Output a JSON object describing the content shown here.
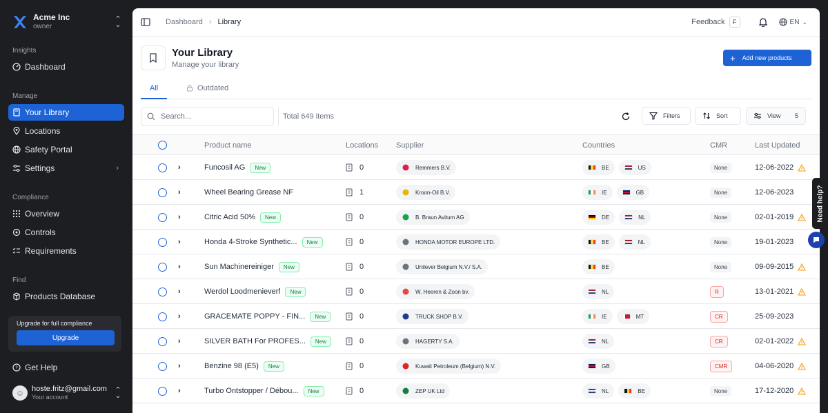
{
  "org": {
    "name": "Acme Inc",
    "role": "owner"
  },
  "sidebar": {
    "sections": [
      {
        "label": "Insights",
        "items": [
          {
            "label": "Dashboard",
            "icon": "gauge-icon"
          }
        ]
      },
      {
        "label": "Manage",
        "items": [
          {
            "label": "Your Library",
            "icon": "book-icon",
            "active": true
          },
          {
            "label": "Locations",
            "icon": "pin-icon"
          },
          {
            "label": "Safety Portal",
            "icon": "globe-icon"
          },
          {
            "label": "Settings",
            "icon": "settings-icon"
          }
        ]
      },
      {
        "label": "Compliance",
        "items": [
          {
            "label": "Overview",
            "icon": "grid-icon"
          },
          {
            "label": "Controls",
            "icon": "controls-icon"
          },
          {
            "label": "Requirements",
            "icon": "checklist-icon"
          }
        ]
      },
      {
        "label": "Find",
        "items": [
          {
            "label": "Products Database",
            "icon": "database-icon"
          }
        ]
      }
    ],
    "upgrade": {
      "title": "Upgrade for full compliance",
      "button": "Upgrade"
    },
    "help": "Get Help",
    "account": {
      "email": "hoste.fritz@gmail.com",
      "sub": "Your account"
    }
  },
  "topbar": {
    "breadcrumb": [
      "Dashboard",
      "Library"
    ],
    "feedback": "Feedback",
    "feedback_key": "F",
    "language": "EN"
  },
  "page": {
    "title": "Your Library",
    "subtitle": "Manage your library",
    "add_button": "Add new products",
    "tabs": [
      "All",
      "Outdated"
    ]
  },
  "toolbar": {
    "search_placeholder": "Search...",
    "total": "Total 649 items",
    "filters": "Filters",
    "sort": "Sort",
    "view": "View",
    "view_count": "5"
  },
  "table": {
    "columns": [
      "Product name",
      "Locations",
      "Supplier",
      "Countries",
      "CMR",
      "Last Updated"
    ],
    "rows": [
      {
        "name": "Funcosil AG",
        "new": true,
        "locations": "0",
        "supplier": "Remmers B.V.",
        "countries": [
          "BE",
          "US"
        ],
        "cmr": "None",
        "updated": "12-06-2022",
        "warn": true
      },
      {
        "name": "Wheel Bearing Grease NF",
        "new": false,
        "locations": "1",
        "supplier": "Kroon-Oil B.V.",
        "countries": [
          "IE",
          "GB"
        ],
        "cmr": "None",
        "updated": "12-06-2023",
        "warn": false
      },
      {
        "name": "Citric Acid 50%",
        "new": true,
        "locations": "0",
        "supplier": "B. Braun Avitum AG",
        "countries": [
          "DE",
          "NL"
        ],
        "cmr": "None",
        "updated": "02-01-2019",
        "warn": true
      },
      {
        "name": "Honda 4-Stroke Synthetic...",
        "new": true,
        "locations": "0",
        "supplier": "HONDA MOTOR EUROPE LTD.",
        "countries": [
          "BE",
          "NL"
        ],
        "cmr": "None",
        "updated": "19-01-2023",
        "warn": false
      },
      {
        "name": "Sun Machinereiniger",
        "new": true,
        "locations": "0",
        "supplier": "Unilever Belgium N.V./ S.A.",
        "countries": [
          "BE"
        ],
        "cmr": "None",
        "updated": "09-09-2015",
        "warn": true
      },
      {
        "name": "Werdol Loodmenieverf",
        "new": true,
        "locations": "0",
        "supplier": "W. Heeren & Zoon bv.",
        "countries": [
          "NL"
        ],
        "cmr": "R",
        "updated": "13-01-2021",
        "warn": true
      },
      {
        "name": "GRACEMATE POPPY - FIN...",
        "new": true,
        "locations": "0",
        "supplier": "TRUCK SHOP B.V.",
        "countries": [
          "IE",
          "MT"
        ],
        "cmr": "CR",
        "updated": "25-09-2023",
        "warn": false
      },
      {
        "name": "SILVER BATH For PROFES...",
        "new": true,
        "locations": "0",
        "supplier": "HAGERTY S.A.",
        "countries": [
          "NL"
        ],
        "cmr": "CR",
        "updated": "02-01-2022",
        "warn": true
      },
      {
        "name": "Benzine 98 (E5)",
        "new": true,
        "locations": "0",
        "supplier": "Kuwait Petroleum (Belgium) N.V.",
        "countries": [
          "GB"
        ],
        "cmr": "CMR",
        "updated": "04-06-2020",
        "warn": true
      },
      {
        "name": "Turbo Ontstopper / Débou...",
        "new": true,
        "locations": "0",
        "supplier": "ZEP UK Ltd",
        "countries": [
          "NL",
          "BE"
        ],
        "cmr": "None",
        "updated": "17-12-2020",
        "warn": true
      }
    ]
  },
  "help_widget": "Need help?",
  "colors": {
    "accent": "#1e63d6",
    "sidebar_bg": "#1d1e21",
    "new_badge": "#15803d",
    "cmr_red": "#dc2626",
    "warning": "#f59e0b"
  }
}
